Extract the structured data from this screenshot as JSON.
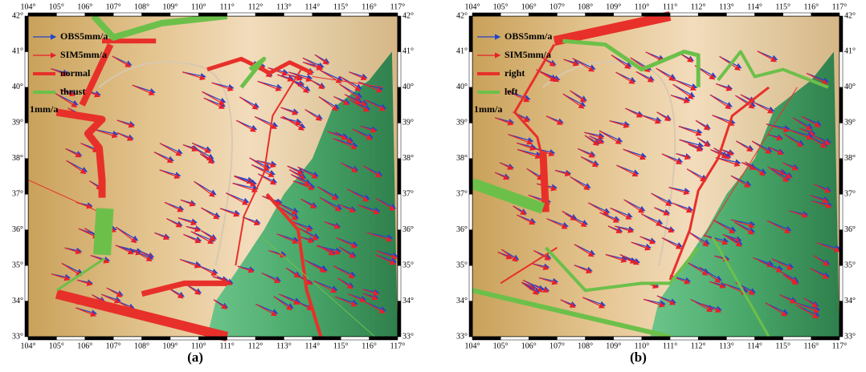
{
  "panels": [
    {
      "label": "(a)",
      "legend": [
        "OBS5mm/a",
        "SIM5mm/a",
        "normal",
        "thrust"
      ],
      "scale": "1mm/a"
    },
    {
      "label": "(b)",
      "legend": [
        "OBS5mm/a",
        "SIM5mm/a",
        "right",
        "left"
      ],
      "scale": "1mm/a"
    }
  ],
  "xtick_labels": [
    "104°",
    "105°",
    "106°",
    "107°",
    "108°",
    "109°",
    "110°",
    "111°",
    "112°",
    "113°",
    "114°",
    "115°",
    "116°",
    "117°"
  ],
  "ytick_labels": [
    "33°",
    "34°",
    "35°",
    "36°",
    "37°",
    "38°",
    "39°",
    "40°",
    "41°",
    "42°"
  ]
}
